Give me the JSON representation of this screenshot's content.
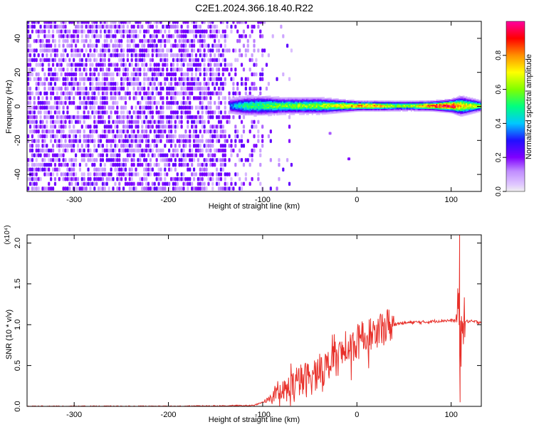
{
  "title": "C2E1.2024.366.18.40.R22",
  "chart_data": [
    {
      "type": "heatmap",
      "xlabel": "Height of straight line (km)",
      "ylabel": "Frequency (Hz)",
      "xlim": [
        -350,
        132
      ],
      "ylim": [
        -50,
        50
      ],
      "xticks": [
        -300,
        -200,
        -100,
        0,
        100
      ],
      "yticks": [
        -40,
        -20,
        0,
        20,
        40
      ],
      "colorbar": {
        "label": "Normalized spectral amplitude",
        "range": [
          0.0,
          1.0
        ],
        "ticks": [
          "0.0",
          "0.2",
          "0.4",
          "0.6",
          "0.8"
        ],
        "tick_values": [
          0.0,
          0.2,
          0.4,
          0.6,
          0.8
        ]
      },
      "noise_region": {
        "x_range": [
          -350,
          -100
        ],
        "typical_amplitude": 0.15
      },
      "ridge": {
        "frequency_hz": 0,
        "x": [
          -135,
          -120,
          -100,
          -80,
          -60,
          -40,
          -20,
          0,
          20,
          40,
          60,
          80,
          100,
          110,
          132
        ],
        "peak_amplitude": [
          0.35,
          0.5,
          0.55,
          0.6,
          0.6,
          0.62,
          0.7,
          0.8,
          0.8,
          0.6,
          0.62,
          0.9,
          0.95,
          0.75,
          0.62
        ],
        "width_hz": [
          5,
          6,
          6,
          5,
          5,
          5,
          4,
          3,
          3,
          3,
          3,
          3,
          4,
          6,
          3
        ]
      },
      "isolated_points": [
        {
          "x": -30,
          "y": -15,
          "amplitude": 0.15
        },
        {
          "x": -10,
          "y": -30,
          "amplitude": 0.2
        }
      ]
    },
    {
      "type": "line",
      "xlabel": "Height of straight line (km)",
      "ylabel": "SNR (10 * v/v)",
      "scale_label": "(x10⁴)",
      "xlim": [
        -350,
        132
      ],
      "ylim": [
        0.0,
        2.1
      ],
      "xticks": [
        -300,
        -200,
        -100,
        0,
        100
      ],
      "yticks": [
        0.0,
        0.5,
        1.0,
        1.5,
        2.0
      ],
      "ytick_labels": [
        "0.0",
        "0.5",
        "1.0",
        "1.5",
        "2.0"
      ],
      "color": "#e8302a",
      "series": [
        {
          "name": "SNR",
          "x": [
            -350,
            -200,
            -110,
            -100,
            -90,
            -80,
            -70,
            -60,
            -50,
            -40,
            -30,
            -20,
            -10,
            0,
            10,
            20,
            30,
            40,
            50,
            60,
            70,
            80,
            90,
            100,
            105,
            108,
            110,
            112,
            115,
            120,
            132
          ],
          "values": [
            0.0,
            0.0,
            0.01,
            0.05,
            0.1,
            0.15,
            0.22,
            0.3,
            0.35,
            0.42,
            0.5,
            0.6,
            0.7,
            0.78,
            0.85,
            0.92,
            0.98,
            1.01,
            1.02,
            1.03,
            1.03,
            1.04,
            1.05,
            1.05,
            1.05,
            1.2,
            0.6,
            1.05,
            1.04,
            1.04,
            1.03
          ]
        }
      ],
      "spike": {
        "x": 110,
        "min": 0.05,
        "max": 2.1
      }
    }
  ]
}
